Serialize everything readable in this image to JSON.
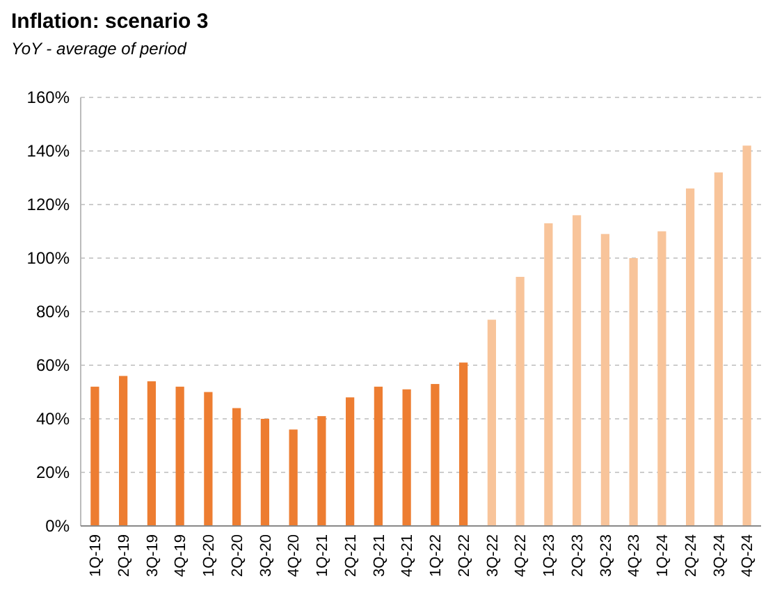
{
  "chart_data": {
    "type": "bar",
    "title": "Inflation: scenario 3",
    "subtitle": "YoY - average of period",
    "categories": [
      "1Q-19",
      "2Q-19",
      "3Q-19",
      "4Q-19",
      "1Q-20",
      "2Q-20",
      "3Q-20",
      "4Q-20",
      "1Q-21",
      "2Q-21",
      "3Q-21",
      "4Q-21",
      "1Q-22",
      "2Q-22",
      "3Q-22",
      "4Q-22",
      "1Q-23",
      "2Q-23",
      "3Q-23",
      "4Q-23",
      "1Q-24",
      "2Q-24",
      "3Q-24",
      "4Q-24"
    ],
    "values": [
      52,
      56,
      54,
      52,
      50,
      44,
      40,
      36,
      41,
      48,
      52,
      51,
      53,
      61,
      77,
      93,
      113,
      116,
      109,
      100,
      110,
      126,
      132,
      142
    ],
    "colors": [
      "#ed7d31",
      "#ed7d31",
      "#ed7d31",
      "#ed7d31",
      "#ed7d31",
      "#ed7d31",
      "#ed7d31",
      "#ed7d31",
      "#ed7d31",
      "#ed7d31",
      "#ed7d31",
      "#ed7d31",
      "#ed7d31",
      "#ed7d31",
      "#f8c49a",
      "#f8c49a",
      "#f8c49a",
      "#f8c49a",
      "#f8c49a",
      "#f8c49a",
      "#f8c49a",
      "#f8c49a",
      "#f8c49a",
      "#f8c49a"
    ],
    "ylim": [
      0,
      160
    ],
    "yticks": [
      {
        "value": 0,
        "label": "0%"
      },
      {
        "value": 20,
        "label": "20%"
      },
      {
        "value": 40,
        "label": "40%"
      },
      {
        "value": 60,
        "label": "60%"
      },
      {
        "value": 80,
        "label": "80%"
      },
      {
        "value": 100,
        "label": "100%"
      },
      {
        "value": 120,
        "label": "120%"
      },
      {
        "value": 140,
        "label": "140%"
      },
      {
        "value": 160,
        "label": "160%"
      }
    ],
    "grid": "y"
  }
}
